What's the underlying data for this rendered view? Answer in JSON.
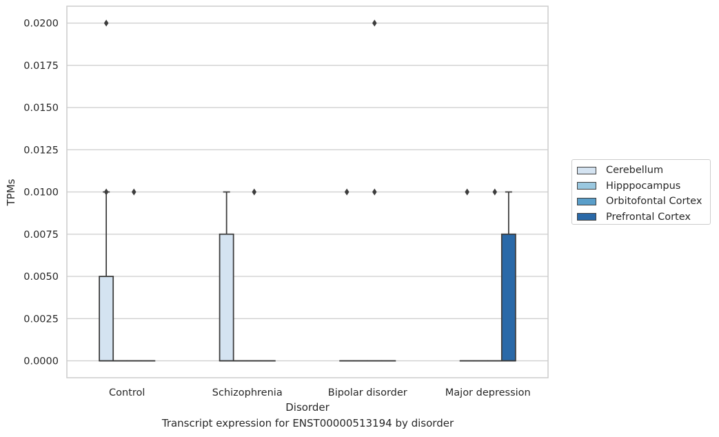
{
  "chart_data": {
    "type": "box",
    "xlabel": "Disorder",
    "ylabel": "TPMs",
    "caption": "Transcript expression for ENST00000513194 by disorder",
    "categories": [
      "Control",
      "Schizophrenia",
      "Bipolar disorder",
      "Major depression"
    ],
    "ylim": [
      -0.001,
      0.021
    ],
    "yticks": [
      0.0,
      0.0025,
      0.005,
      0.0075,
      0.01,
      0.0125,
      0.015,
      0.0175,
      0.02
    ],
    "ytick_labels": [
      "0.0000",
      "0.0025",
      "0.0050",
      "0.0075",
      "0.0100",
      "0.0125",
      "0.0150",
      "0.0175",
      "0.0200"
    ],
    "grid": "horizontal",
    "legend_position": "center-right outside",
    "series": [
      {
        "name": "Cerebellum",
        "color": "#d4e3f1",
        "boxes": [
          {
            "q1": 0.0,
            "median": 0.0,
            "q3": 0.005,
            "whislo": 0.0,
            "whishi": 0.01,
            "fliers": [
              0.02,
              0.01
            ]
          },
          {
            "q1": 0.0,
            "median": 0.0,
            "q3": 0.0075,
            "whislo": 0.0,
            "whishi": 0.01,
            "fliers": []
          },
          {
            "q1": 0.0,
            "median": 0.0,
            "q3": 0.0,
            "whislo": 0.0,
            "whishi": 0.0,
            "fliers": [
              0.01
            ]
          },
          {
            "q1": 0.0,
            "median": 0.0,
            "q3": 0.0,
            "whislo": 0.0,
            "whishi": 0.0,
            "fliers": [
              0.01
            ]
          }
        ]
      },
      {
        "name": "Hipppocampus",
        "color": "#9ac8e0",
        "boxes": [
          {
            "q1": 0.0,
            "median": 0.0,
            "q3": 0.0,
            "whislo": 0.0,
            "whishi": 0.0,
            "fliers": []
          },
          {
            "q1": 0.0,
            "median": 0.0,
            "q3": 0.0,
            "whislo": 0.0,
            "whishi": 0.0,
            "fliers": []
          },
          {
            "q1": 0.0,
            "median": 0.0,
            "q3": 0.0,
            "whislo": 0.0,
            "whishi": 0.0,
            "fliers": []
          },
          {
            "q1": 0.0,
            "median": 0.0,
            "q3": 0.0,
            "whislo": 0.0,
            "whishi": 0.0,
            "fliers": []
          }
        ]
      },
      {
        "name": "Orbitofontal Cortex",
        "color": "#5a9ec9",
        "boxes": [
          {
            "q1": 0.0,
            "median": 0.0,
            "q3": 0.0,
            "whislo": 0.0,
            "whishi": 0.0,
            "fliers": [
              0.01
            ]
          },
          {
            "q1": 0.0,
            "median": 0.0,
            "q3": 0.0,
            "whislo": 0.0,
            "whishi": 0.0,
            "fliers": [
              0.01
            ]
          },
          {
            "q1": 0.0,
            "median": 0.0,
            "q3": 0.0,
            "whislo": 0.0,
            "whishi": 0.0,
            "fliers": [
              0.02,
              0.01
            ]
          },
          {
            "q1": 0.0,
            "median": 0.0,
            "q3": 0.0,
            "whislo": 0.0,
            "whishi": 0.0,
            "fliers": [
              0.01
            ]
          }
        ]
      },
      {
        "name": "Prefrontal Cortex",
        "color": "#2a69a8",
        "boxes": [
          {
            "q1": 0.0,
            "median": 0.0,
            "q3": 0.0,
            "whislo": 0.0,
            "whishi": 0.0,
            "fliers": []
          },
          {
            "q1": 0.0,
            "median": 0.0,
            "q3": 0.0,
            "whislo": 0.0,
            "whishi": 0.0,
            "fliers": []
          },
          {
            "q1": 0.0,
            "median": 0.0,
            "q3": 0.0,
            "whislo": 0.0,
            "whishi": 0.0,
            "fliers": []
          },
          {
            "q1": 0.0,
            "median": 0.0,
            "q3": 0.0075,
            "whislo": 0.0,
            "whishi": 0.01,
            "fliers": []
          }
        ]
      }
    ]
  }
}
